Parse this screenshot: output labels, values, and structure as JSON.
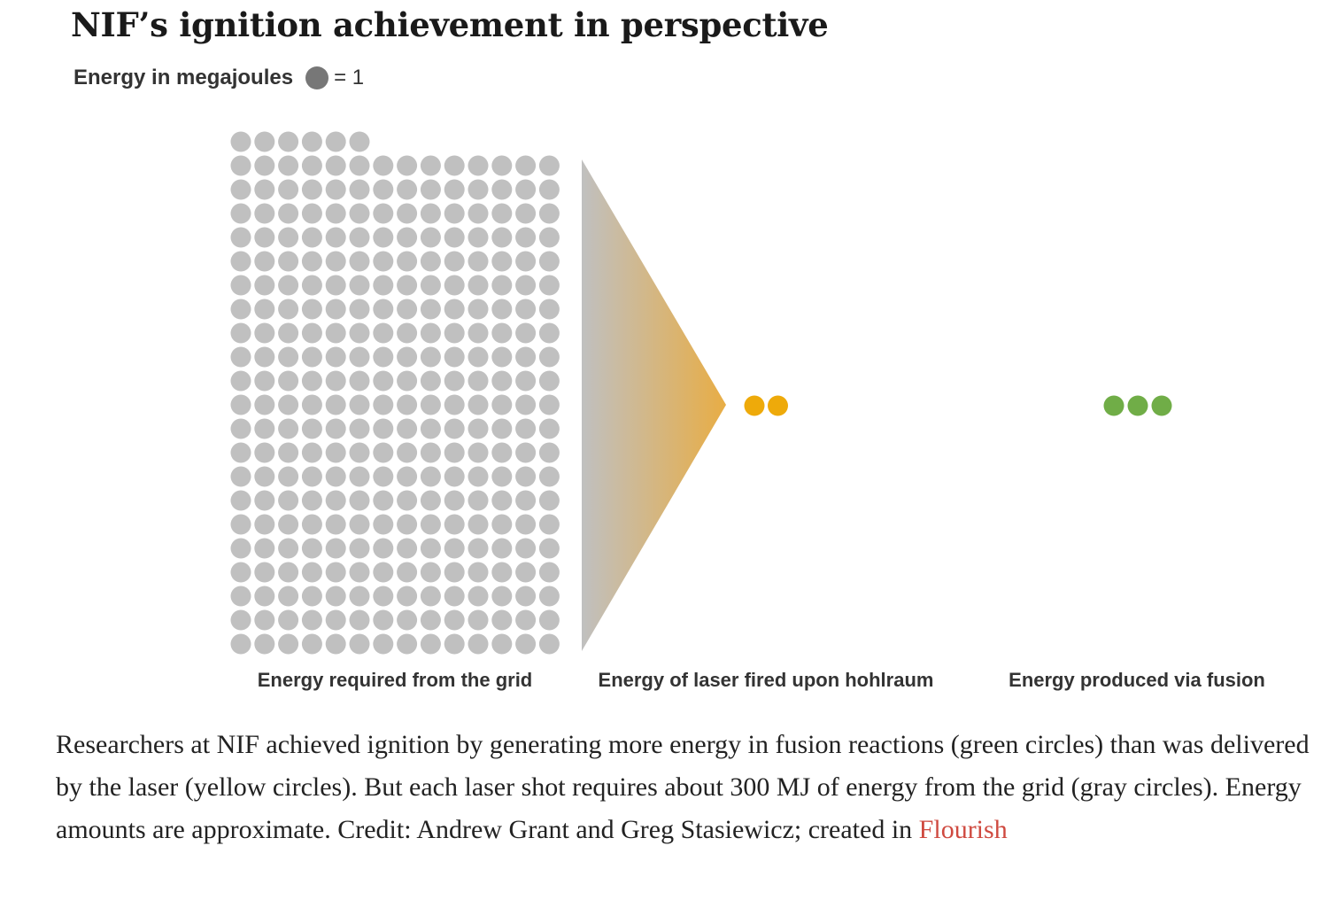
{
  "title": "NIF’s ignition achievement in perspective",
  "subtitle": "Energy in megajoules",
  "legend": {
    "unit_label": "= 1",
    "unit_value": 1,
    "unit_color": "#777777"
  },
  "chart_data": {
    "type": "bar",
    "title": "NIF’s ignition achievement in perspective",
    "unit": "megajoules",
    "categories": [
      "Energy required from the grid",
      "Energy of laser fired upon hohlraum",
      "Energy produced via fusion"
    ],
    "values": [
      300,
      2,
      3
    ],
    "colors": [
      "#c0c0c0",
      "#eeaa0a",
      "#70ad47"
    ],
    "columns_per_row": 14
  },
  "caption": {
    "text": "Researchers at NIF achieved ignition by generating more energy in fusion reactions (green circles) than was delivered by the laser (yellow circles). But each laser shot requires about 300 MJ of energy from the grid (gray circles). Energy amounts are approximate. Credit: Andrew Grant and Greg Stasiewicz; created in ",
    "link": "Flourish"
  }
}
